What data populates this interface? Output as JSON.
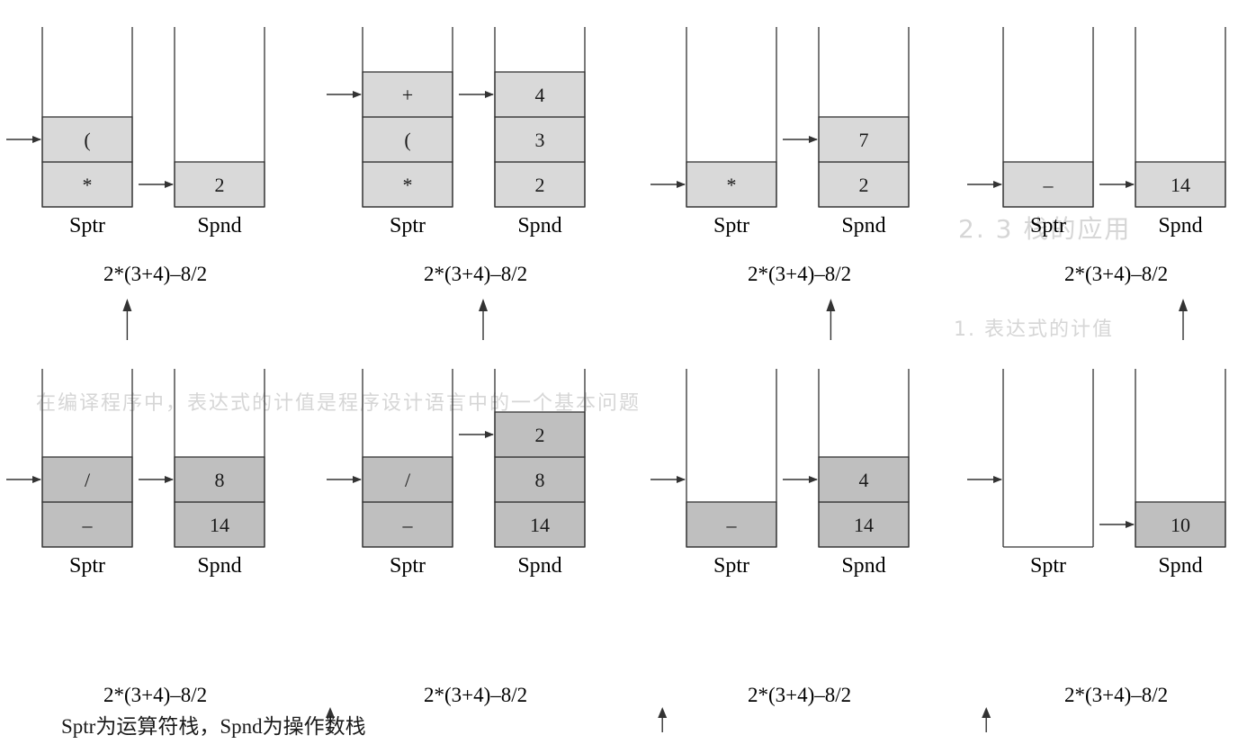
{
  "caption": "Sptr为运算符栈，Spnd为操作数栈",
  "expression": "2*(3+4)–8/2",
  "labels": {
    "operator_stack": "Sptr",
    "operand_stack": "Spnd"
  },
  "colors": {
    "cell_fill": "#d9d9d9",
    "cell_fill_dark": "#bfbfbf",
    "line": "#333333",
    "bleed_text": "#d6d6d6"
  },
  "bleed_through": {
    "heading": "2. 3   栈的应用",
    "subheading": "1. 表达式的计值",
    "paragraph_fragment": "在编译程序中，表达式的计值是程序设计语言中的一个基本问题"
  },
  "steps": [
    {
      "id": "step-1",
      "sptr": [
        "*",
        "("
      ],
      "spnd": [
        "2"
      ],
      "sptr_pointer_cell": 1,
      "spnd_pointer_cell": 0,
      "scan_index": 2
    },
    {
      "id": "step-2",
      "sptr": [
        "*",
        "(",
        "+"
      ],
      "spnd": [
        "2",
        "3",
        "4"
      ],
      "sptr_pointer_cell": 2,
      "spnd_pointer_cell": 2,
      "scan_index": 5
    },
    {
      "id": "step-3",
      "sptr": [
        "*"
      ],
      "spnd": [
        "2",
        "7"
      ],
      "sptr_pointer_cell": 0,
      "spnd_pointer_cell": 1,
      "scan_index": 7
    },
    {
      "id": "step-4",
      "sptr": [
        "–"
      ],
      "spnd": [
        "14"
      ],
      "sptr_pointer_cell": 0,
      "spnd_pointer_cell": 0,
      "scan_index": 10
    },
    {
      "id": "step-5",
      "sptr": [
        "–",
        "/"
      ],
      "spnd": [
        "14",
        "8"
      ],
      "sptr_pointer_cell": 1,
      "spnd_pointer_cell": 1,
      "scan_index": 10
    },
    {
      "id": "step-6",
      "sptr": [
        "–",
        "/"
      ],
      "spnd": [
        "14",
        "8",
        "2"
      ],
      "sptr_pointer_cell": 1,
      "spnd_pointer_cell": 2,
      "scan_index": 11
    },
    {
      "id": "step-7",
      "sptr": [
        "–"
      ],
      "spnd": [
        "14",
        "4"
      ],
      "sptr_pointer_cell": 1,
      "spnd_pointer_cell": 1,
      "scan_index": 11
    },
    {
      "id": "step-8",
      "sptr": [],
      "spnd": [
        "10"
      ],
      "sptr_pointer_cell": 1,
      "spnd_pointer_cell": 0,
      "scan_index": 11
    }
  ]
}
